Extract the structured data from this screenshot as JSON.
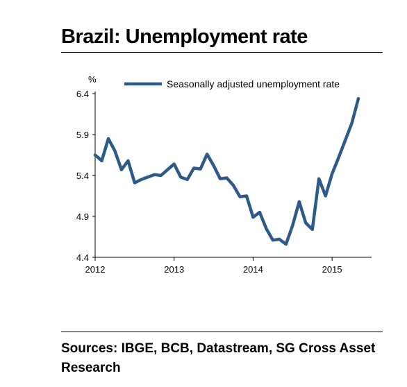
{
  "title": "Brazil: Unemployment rate",
  "sources": "Sources: IBGE, BCB, Datastream, SG Cross Asset Research",
  "chart_data": {
    "type": "line",
    "ylabel": "%",
    "xlabel": "",
    "ylim": [
      4.4,
      6.4
    ],
    "yticks": [
      "6.4",
      "5.9",
      "5.4",
      "4.9",
      "4.4"
    ],
    "xticks": [
      "2012",
      "2013",
      "2014",
      "2015"
    ],
    "legend_position": "top-right",
    "grid": false,
    "line_color": "#2E5A8A",
    "series": [
      {
        "name": "Seasonally adjusted unemployment rate",
        "x": [
          "2012-01",
          "2012-02",
          "2012-03",
          "2012-04",
          "2012-05",
          "2012-06",
          "2012-07",
          "2012-08",
          "2012-09",
          "2012-10",
          "2012-11",
          "2012-12",
          "2013-01",
          "2013-02",
          "2013-03",
          "2013-04",
          "2013-05",
          "2013-06",
          "2013-07",
          "2013-08",
          "2013-09",
          "2013-10",
          "2013-11",
          "2013-12",
          "2014-01",
          "2014-02",
          "2014-03",
          "2014-04",
          "2014-05",
          "2014-06",
          "2014-07",
          "2014-08",
          "2014-09",
          "2014-10",
          "2014-11",
          "2014-12",
          "2015-01",
          "2015-02",
          "2015-03",
          "2015-04",
          "2015-05"
        ],
        "values": [
          5.65,
          5.58,
          5.85,
          5.7,
          5.47,
          5.58,
          5.31,
          5.35,
          5.38,
          5.41,
          5.4,
          5.47,
          5.54,
          5.38,
          5.35,
          5.49,
          5.48,
          5.66,
          5.52,
          5.36,
          5.37,
          5.28,
          5.14,
          5.15,
          4.89,
          4.95,
          4.75,
          4.61,
          4.62,
          4.56,
          4.79,
          5.08,
          4.82,
          4.74,
          5.36,
          5.15,
          5.42,
          5.62,
          5.83,
          6.04,
          6.34
        ]
      }
    ]
  }
}
